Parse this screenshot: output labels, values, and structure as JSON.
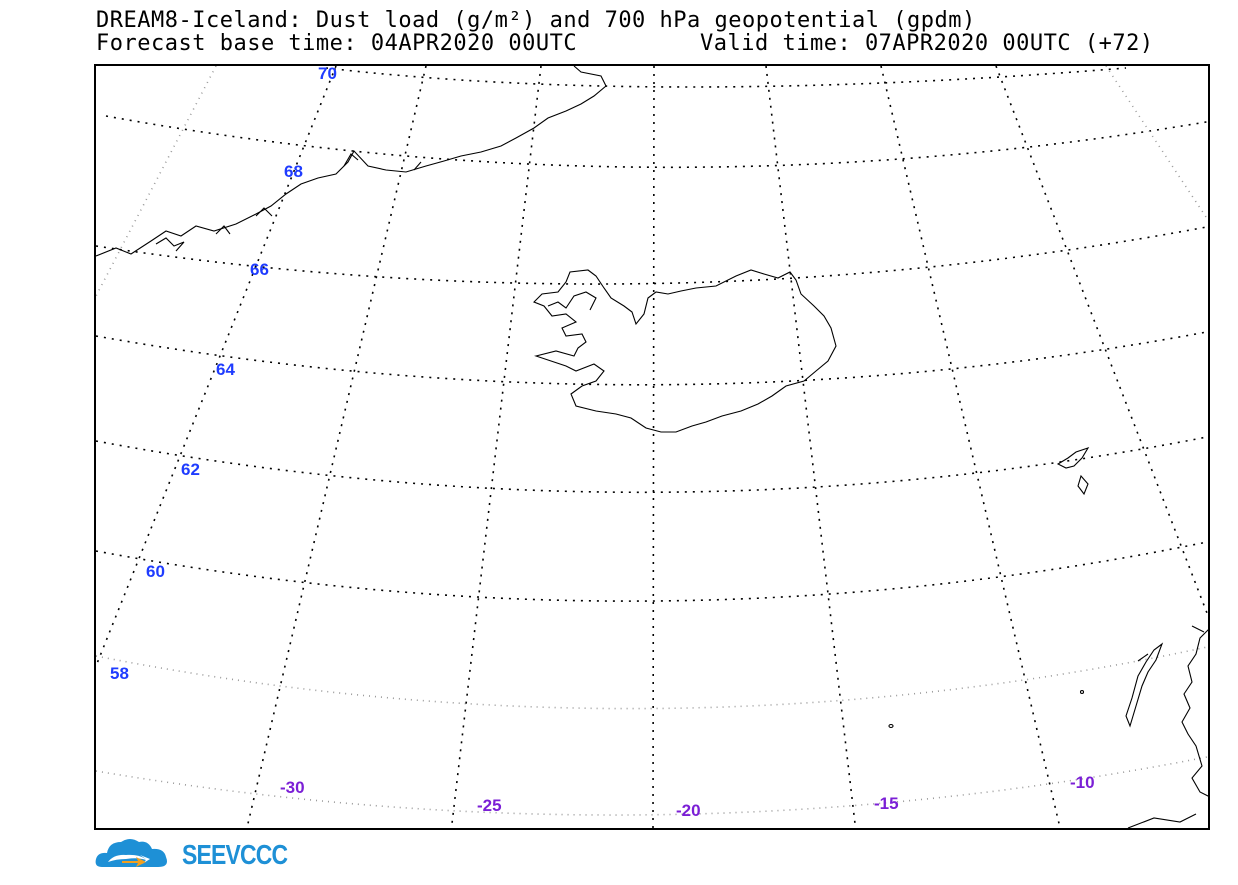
{
  "title": {
    "line1": "DREAM8-Iceland: Dust load (g/m²) and 700 hPa geopotential (gpdm)",
    "base_time": "Forecast base time: 04APR2020 00UTC",
    "valid_time": "Valid time: 07APR2020 00UTC (+72)"
  },
  "map": {
    "latitude_labels": [
      "70",
      "68",
      "66",
      "64",
      "62",
      "60",
      "58"
    ],
    "longitude_labels": [
      "-30",
      "-25",
      "-20",
      "-15",
      "-10"
    ],
    "colors": {
      "lat_label": "#1f3cff",
      "lon_label": "#7b1fd6",
      "grid": "#000000",
      "coast": "#000000"
    }
  },
  "logo": {
    "text": "SEEVCCC",
    "colors": {
      "cloud": "#1e90d6",
      "arrow": "#f0a020"
    }
  }
}
